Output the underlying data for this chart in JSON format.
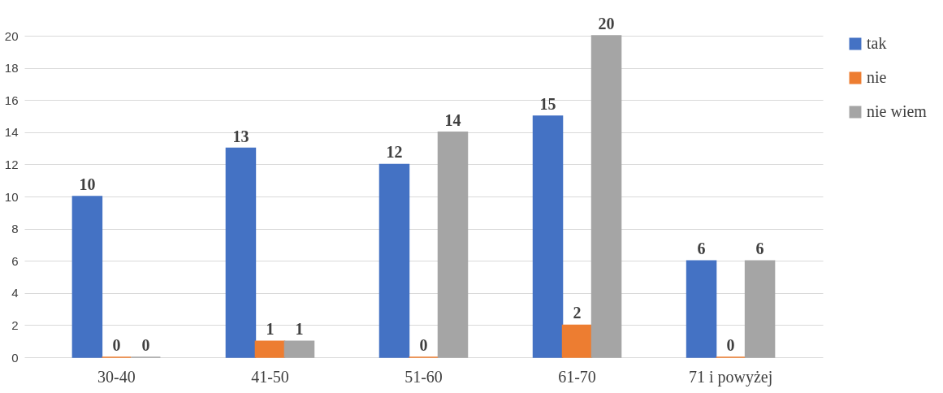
{
  "chart_data": {
    "type": "bar",
    "categories": [
      "30-40",
      "41-50",
      "51-60",
      "61-70",
      "71 i powyżej"
    ],
    "series": [
      {
        "name": "tak",
        "color": "#4472c4",
        "values": [
          10,
          13,
          12,
          15,
          6
        ]
      },
      {
        "name": "nie",
        "color": "#ed7d31",
        "values": [
          0,
          1,
          0,
          2,
          0
        ]
      },
      {
        "name": "nie wiem",
        "color": "#a5a5a5",
        "values": [
          0,
          1,
          14,
          20,
          6
        ]
      }
    ],
    "ylim": [
      0,
      20
    ],
    "yticks": [
      0,
      2,
      4,
      6,
      8,
      10,
      12,
      14,
      16,
      18,
      20
    ],
    "grid": "y",
    "legend": "right",
    "data_labels": true
  }
}
